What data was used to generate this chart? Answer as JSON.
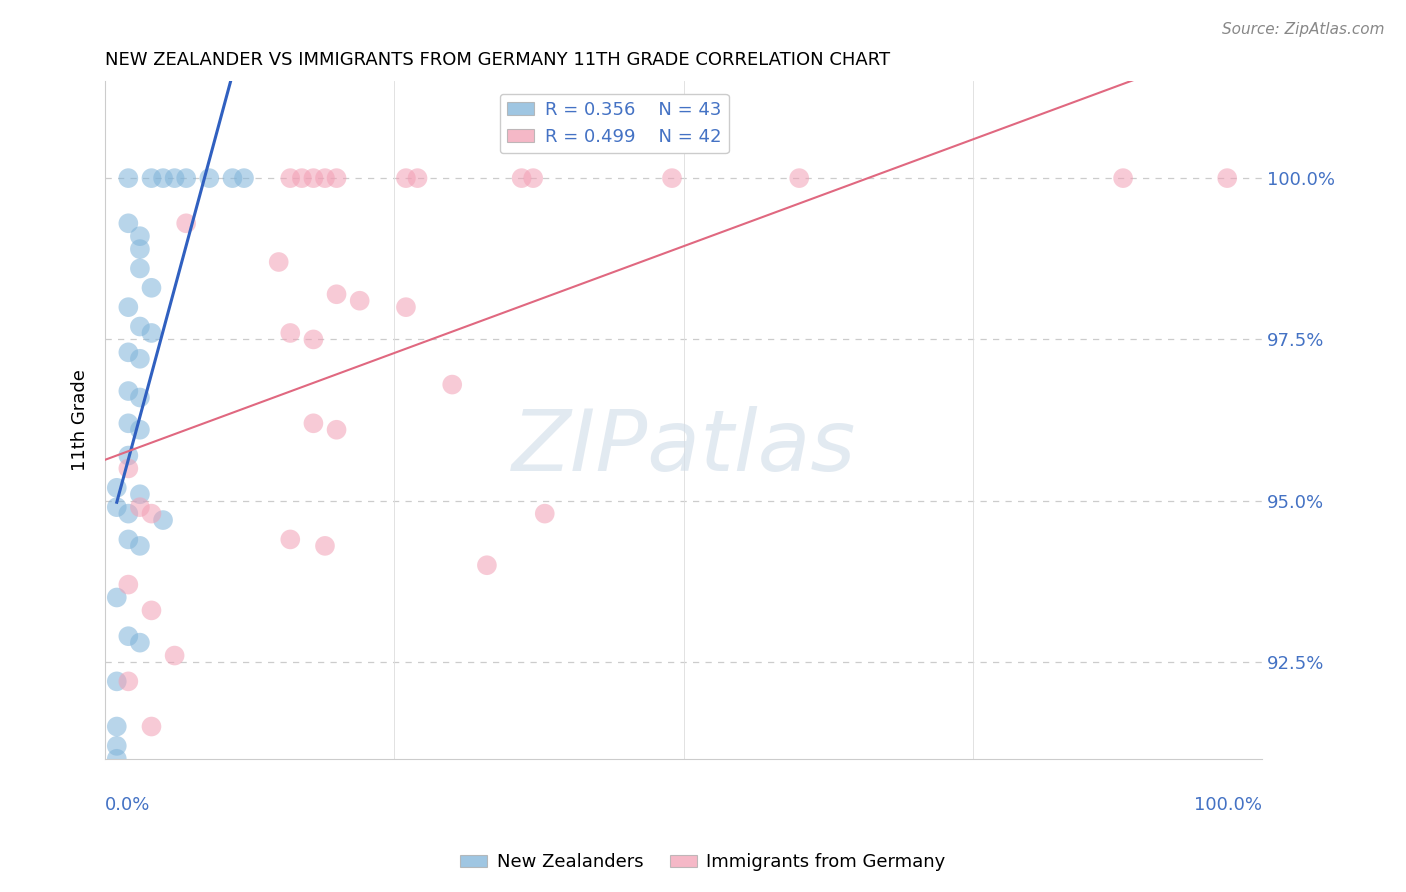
{
  "title": "NEW ZEALANDER VS IMMIGRANTS FROM GERMANY 11TH GRADE CORRELATION CHART",
  "source": "Source: ZipAtlas.com",
  "ylabel": "11th Grade",
  "legend_r_blue": "R = 0.356",
  "legend_n_blue": "N = 43",
  "legend_r_pink": "R = 0.499",
  "legend_n_pink": "N = 42",
  "blue_color": "#7fb3d9",
  "pink_color": "#f2a0b5",
  "blue_line_color": "#3060c0",
  "pink_line_color": "#e06880",
  "watermark_text": "ZIPatlas",
  "xlim": [
    0.0,
    100.0
  ],
  "ylim": [
    91.0,
    101.5
  ],
  "xticks": [
    0.0,
    25.0,
    50.0,
    75.0,
    100.0
  ],
  "yticks": [
    92.5,
    95.0,
    97.5,
    100.0
  ],
  "xtick_labels_show": [
    "0.0%",
    "100.0%"
  ],
  "xtick_labels_pos": [
    0.0,
    100.0
  ],
  "ytick_labels": [
    "92.5%",
    "95.0%",
    "97.5%",
    "100.0%"
  ],
  "blue_scatter": [
    [
      2.0,
      100.0
    ],
    [
      4.0,
      100.0
    ],
    [
      5.0,
      100.0
    ],
    [
      6.0,
      100.0
    ],
    [
      7.0,
      100.0
    ],
    [
      9.0,
      100.0
    ],
    [
      11.0,
      100.0
    ],
    [
      12.0,
      100.0
    ],
    [
      2.0,
      99.3
    ],
    [
      3.0,
      99.1
    ],
    [
      3.0,
      98.9
    ],
    [
      3.0,
      98.6
    ],
    [
      4.0,
      98.3
    ],
    [
      2.0,
      98.0
    ],
    [
      3.0,
      97.7
    ],
    [
      4.0,
      97.6
    ],
    [
      2.0,
      97.3
    ],
    [
      3.0,
      97.2
    ],
    [
      2.0,
      96.7
    ],
    [
      3.0,
      96.6
    ],
    [
      2.0,
      96.2
    ],
    [
      3.0,
      96.1
    ],
    [
      2.0,
      95.7
    ],
    [
      1.0,
      95.2
    ],
    [
      3.0,
      95.1
    ],
    [
      1.0,
      94.9
    ],
    [
      2.0,
      94.8
    ],
    [
      5.0,
      94.7
    ],
    [
      2.0,
      94.4
    ],
    [
      3.0,
      94.3
    ],
    [
      1.0,
      93.5
    ],
    [
      2.0,
      92.9
    ],
    [
      3.0,
      92.8
    ],
    [
      1.0,
      92.2
    ],
    [
      1.0,
      91.5
    ],
    [
      1.0,
      91.0
    ],
    [
      1.0,
      91.2
    ]
  ],
  "pink_scatter": [
    [
      16.0,
      100.0
    ],
    [
      17.0,
      100.0
    ],
    [
      18.0,
      100.0
    ],
    [
      19.0,
      100.0
    ],
    [
      20.0,
      100.0
    ],
    [
      26.0,
      100.0
    ],
    [
      27.0,
      100.0
    ],
    [
      36.0,
      100.0
    ],
    [
      37.0,
      100.0
    ],
    [
      49.0,
      100.0
    ],
    [
      60.0,
      100.0
    ],
    [
      88.0,
      100.0
    ],
    [
      97.0,
      100.0
    ],
    [
      7.0,
      99.3
    ],
    [
      15.0,
      98.7
    ],
    [
      20.0,
      98.2
    ],
    [
      22.0,
      98.1
    ],
    [
      26.0,
      98.0
    ],
    [
      16.0,
      97.6
    ],
    [
      18.0,
      97.5
    ],
    [
      30.0,
      96.8
    ],
    [
      18.0,
      96.2
    ],
    [
      20.0,
      96.1
    ],
    [
      2.0,
      95.5
    ],
    [
      3.0,
      94.9
    ],
    [
      4.0,
      94.8
    ],
    [
      16.0,
      94.4
    ],
    [
      19.0,
      94.3
    ],
    [
      33.0,
      94.0
    ],
    [
      2.0,
      93.7
    ],
    [
      4.0,
      93.3
    ],
    [
      6.0,
      92.6
    ],
    [
      38.0,
      94.8
    ],
    [
      2.0,
      92.2
    ],
    [
      4.0,
      91.5
    ]
  ],
  "blue_line_x": [
    1.0,
    12.0
  ],
  "pink_line_x": [
    0.0,
    100.0
  ]
}
